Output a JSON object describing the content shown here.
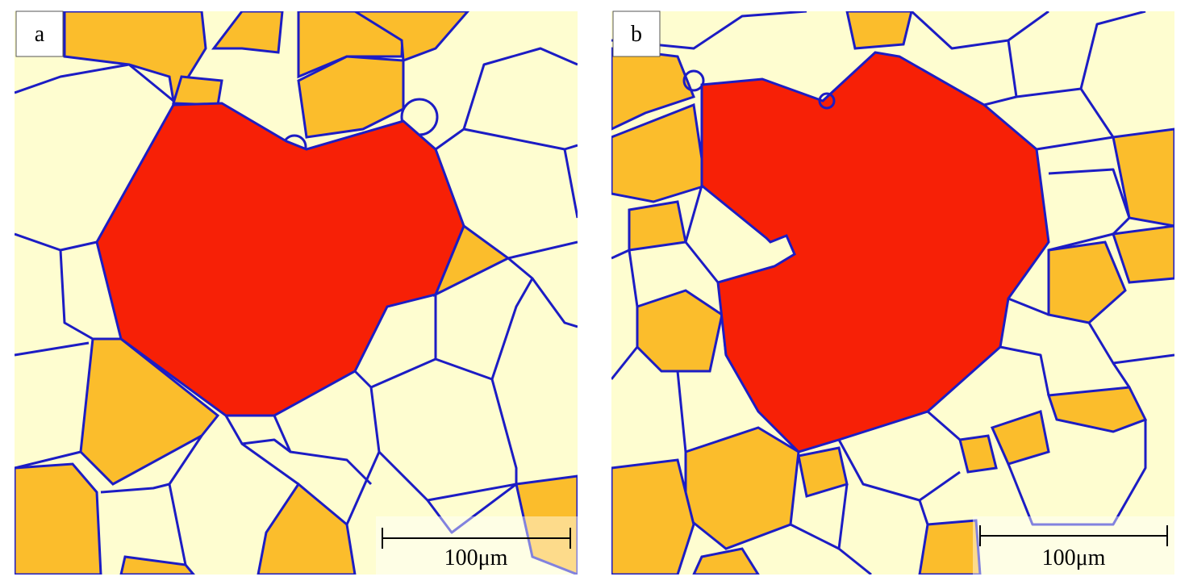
{
  "panels": [
    {
      "label": "a",
      "scale_bar": "100μm"
    },
    {
      "label": "b",
      "scale_bar": "100μm"
    }
  ]
}
